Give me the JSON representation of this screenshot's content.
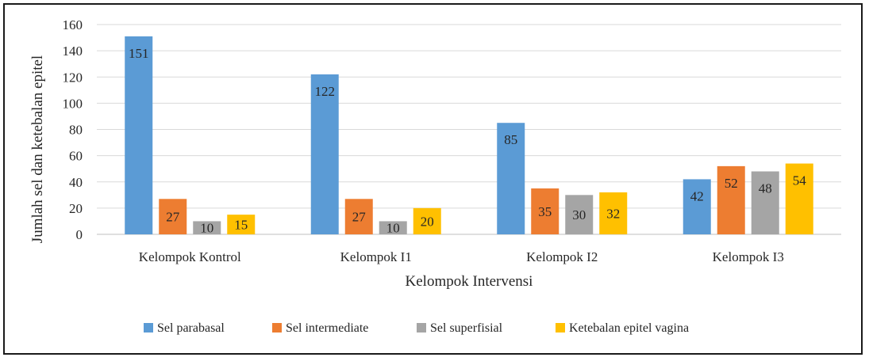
{
  "chart_data": {
    "type": "bar",
    "title": "",
    "xlabel": "Kelompok Intervensi",
    "ylabel": "Jumlah sel dan ketebalan epitel",
    "ylim": [
      0,
      160
    ],
    "yticks": [
      0,
      20,
      40,
      60,
      80,
      100,
      120,
      140,
      160
    ],
    "grid": true,
    "legend_position": "bottom",
    "categories": [
      "Kelompok Kontrol",
      "Kelompok I1",
      "Kelompok I2",
      "Kelompok I3"
    ],
    "series": [
      {
        "name": "Sel parabasal",
        "color": "#5b9bd5",
        "values": [
          151,
          122,
          85,
          42
        ]
      },
      {
        "name": "Sel intermediate",
        "color": "#ed7d31",
        "values": [
          27,
          27,
          35,
          52
        ]
      },
      {
        "name": "Sel superfisial",
        "color": "#a5a5a5",
        "values": [
          10,
          10,
          30,
          48
        ]
      },
      {
        "name": "Ketebalan epitel vagina",
        "color": "#ffc000",
        "values": [
          15,
          20,
          32,
          54
        ]
      }
    ]
  }
}
